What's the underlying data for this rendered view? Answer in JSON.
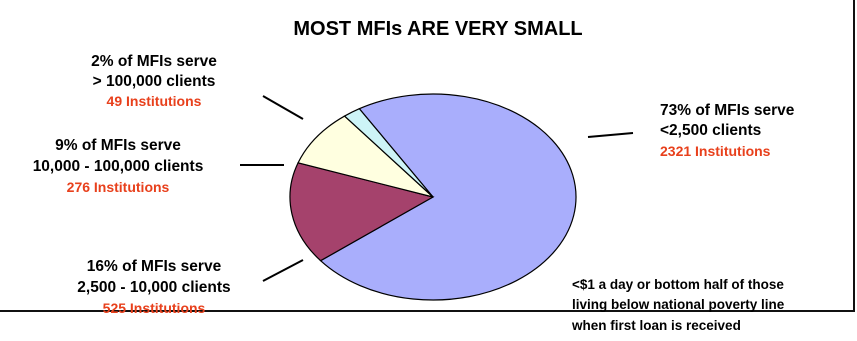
{
  "colors": {
    "small": "#a9aefc",
    "medium": "#a5426c",
    "large": "#ffffe0",
    "very_large": "#cdf4f7",
    "institutions_text": "#e8401c"
  },
  "chart_data": {
    "type": "pie",
    "title": "MOST MFIs ARE VERY SMALL",
    "slices": [
      {
        "key": "small",
        "value": 73,
        "label_lines": [
          "73% of MFIs serve",
          "<2,500 clients"
        ],
        "institutions": "2321 Institutions",
        "color": "#a9aefc"
      },
      {
        "key": "medium",
        "value": 16,
        "label_lines": [
          "16% of MFIs serve",
          "2,500 - 10,000 clients"
        ],
        "institutions": "525 Institutions",
        "color": "#a5426c"
      },
      {
        "key": "large",
        "value": 9,
        "label_lines": [
          "9% of MFIs serve",
          "10,000 - 100,000 clients"
        ],
        "institutions": "276 Institutions",
        "color": "#ffffe0"
      },
      {
        "key": "very_large",
        "value": 2,
        "label_lines": [
          "2% of MFIs serve",
          "> 100,000 clients"
        ],
        "institutions": "49 Institutions",
        "color": "#cdf4f7"
      }
    ],
    "note_lines": [
      "<$1 a day or bottom half of those",
      "living below national poverty line",
      "when first loan is received"
    ]
  }
}
